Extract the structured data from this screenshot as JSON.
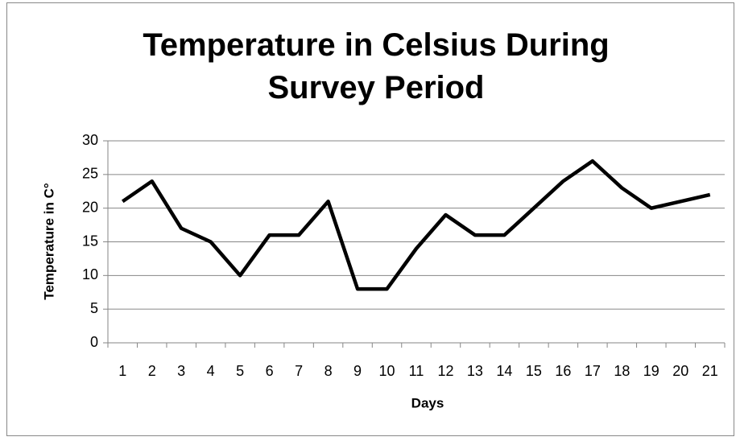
{
  "chart_data": {
    "type": "line",
    "title": "Temperature in Celsius During Survey Period",
    "x_label": "Days",
    "y_label": "Temperature in C°",
    "categories": [
      "1",
      "2",
      "3",
      "4",
      "5",
      "6",
      "7",
      "8",
      "9",
      "10",
      "11",
      "12",
      "13",
      "14",
      "15",
      "16",
      "17",
      "18",
      "19",
      "20",
      "21"
    ],
    "values": [
      21,
      24,
      17,
      15,
      10,
      16,
      16,
      21,
      8,
      8,
      14,
      19,
      16,
      16,
      20,
      24,
      27,
      23,
      20,
      21,
      22
    ],
    "color": "#000000",
    "ylim": [
      0,
      30
    ],
    "yticks": [
      0,
      5,
      10,
      15,
      20,
      25,
      30
    ],
    "grid": true
  }
}
